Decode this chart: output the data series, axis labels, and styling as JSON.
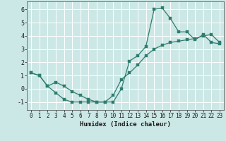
{
  "xlabel": "Humidex (Indice chaleur)",
  "background_color": "#cce8e6",
  "grid_color": "#ffffff",
  "line_color": "#2e7d6e",
  "xlim": [
    -0.5,
    23.5
  ],
  "ylim": [
    -1.6,
    6.6
  ],
  "xticks": [
    0,
    1,
    2,
    3,
    4,
    5,
    6,
    7,
    8,
    9,
    10,
    11,
    12,
    13,
    14,
    15,
    16,
    17,
    18,
    19,
    20,
    21,
    22,
    23
  ],
  "yticks": [
    -1,
    0,
    1,
    2,
    3,
    4,
    5,
    6
  ],
  "line1_x": [
    0,
    1,
    2,
    3,
    4,
    5,
    6,
    7,
    8,
    9,
    10,
    11,
    12,
    13,
    14,
    15,
    16,
    17,
    18,
    19,
    20,
    21,
    22,
    23
  ],
  "line1_y": [
    1.2,
    1.0,
    0.2,
    -0.3,
    -0.8,
    -1.0,
    -1.0,
    -1.0,
    -1.0,
    -1.0,
    -1.0,
    0.0,
    2.1,
    2.5,
    3.2,
    6.0,
    6.1,
    5.3,
    4.3,
    4.3,
    3.7,
    4.1,
    3.5,
    3.4
  ],
  "line2_x": [
    0,
    1,
    2,
    3,
    4,
    5,
    6,
    7,
    8,
    9,
    10,
    11,
    12,
    13,
    14,
    15,
    16,
    17,
    18,
    19,
    20,
    21,
    22,
    23
  ],
  "line2_y": [
    1.2,
    1.0,
    0.2,
    0.5,
    0.2,
    -0.2,
    -0.5,
    -0.8,
    -1.0,
    -1.0,
    -0.5,
    0.7,
    1.2,
    1.8,
    2.5,
    3.0,
    3.3,
    3.5,
    3.6,
    3.7,
    3.8,
    4.0,
    4.1,
    3.5
  ],
  "marker_size": 2.5,
  "line_width": 0.9,
  "tick_fontsize": 5.5,
  "xlabel_fontsize": 6.5
}
